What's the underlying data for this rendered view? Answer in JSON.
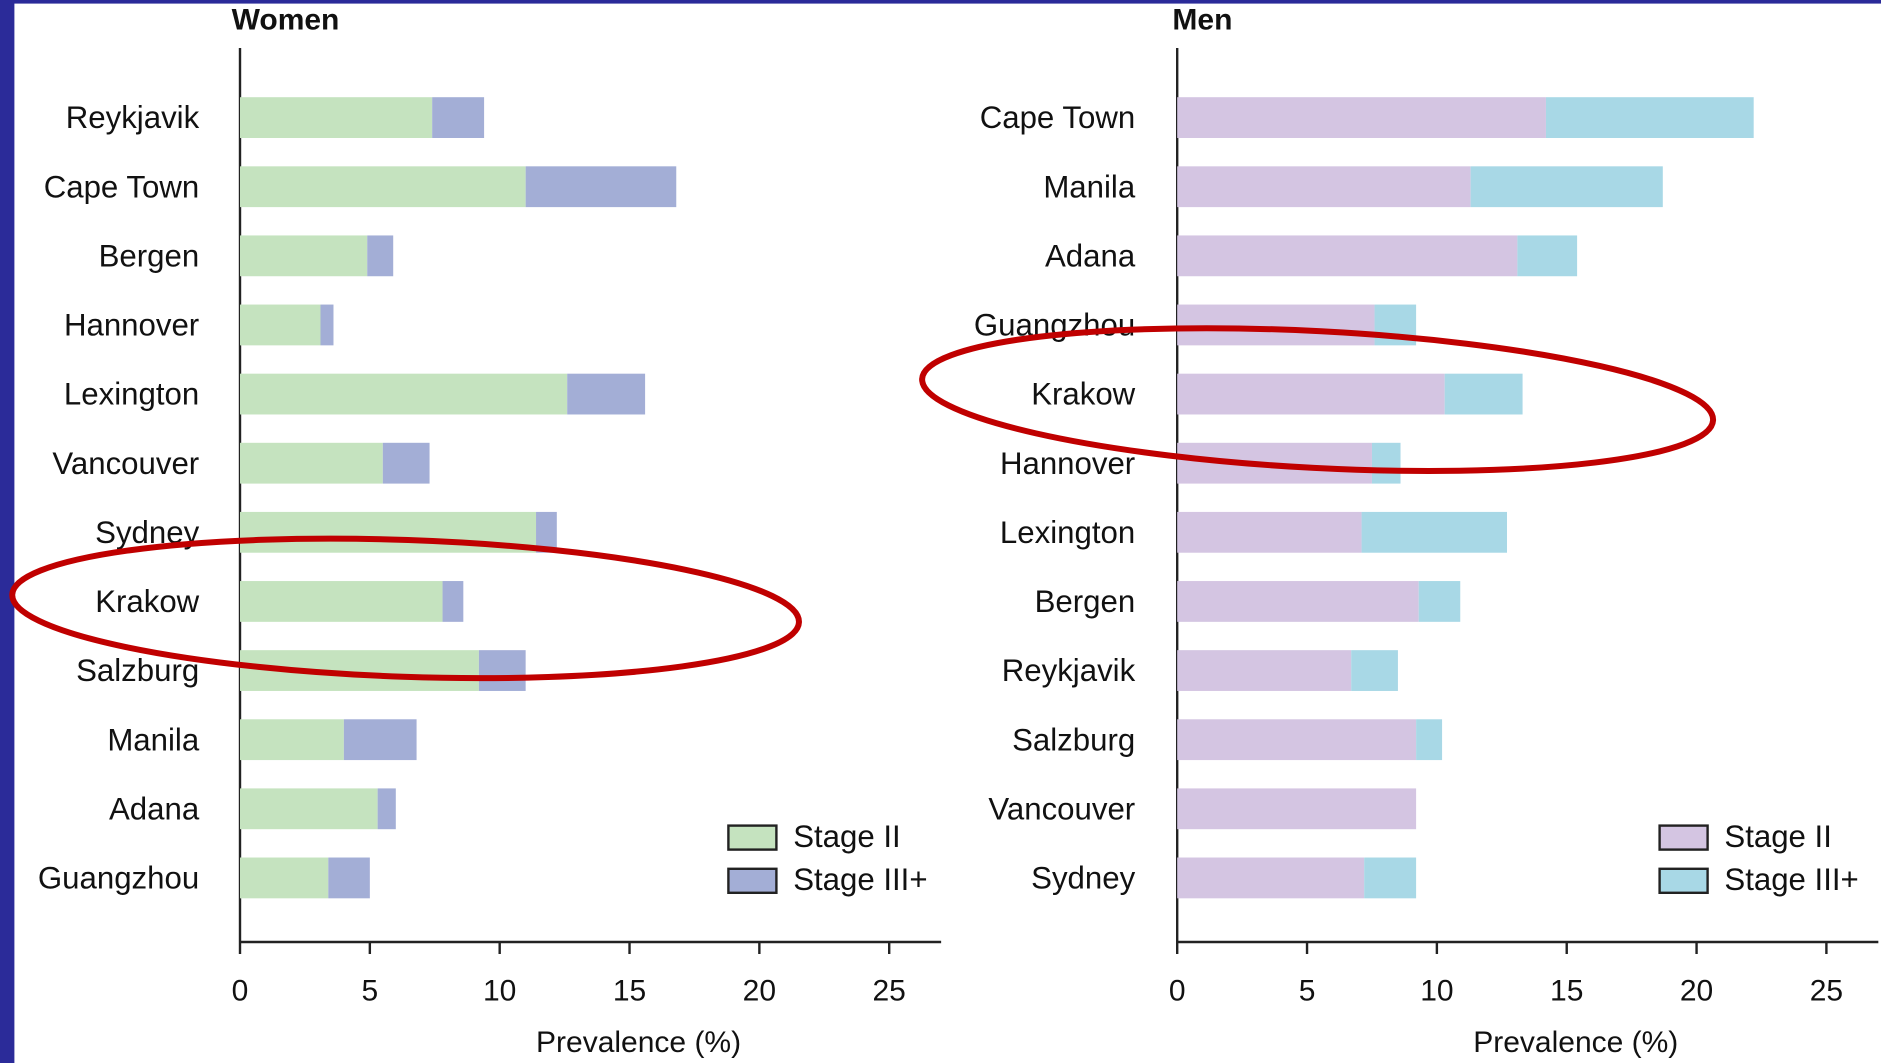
{
  "chart_data": [
    {
      "type": "bar",
      "orientation": "horizontal",
      "stacked": true,
      "title": "Women",
      "categories": [
        "Reykjavik",
        "Cape Town",
        "Bergen",
        "Hannover",
        "Lexington",
        "Vancouver",
        "Sydney",
        "Krakow",
        "Salzburg",
        "Manila",
        "Adana",
        "Guangzhou"
      ],
      "series": [
        {
          "name": "Stage II",
          "color": "#c5e3bf",
          "values": [
            7.4,
            11.0,
            4.9,
            3.1,
            12.6,
            5.5,
            11.4,
            7.8,
            9.2,
            4.0,
            5.3,
            3.4
          ]
        },
        {
          "name": "Stage III+",
          "color": "#a3aed6",
          "values": [
            2.0,
            5.8,
            1.0,
            0.5,
            3.0,
            1.8,
            0.8,
            0.8,
            1.8,
            2.8,
            0.7,
            1.6
          ]
        }
      ],
      "xlabel": "Prevalence (%)",
      "xlim": [
        0,
        27
      ],
      "xticks": [
        0,
        5,
        10,
        15,
        20,
        25
      ],
      "legend": "lower right"
    },
    {
      "type": "bar",
      "orientation": "horizontal",
      "stacked": true,
      "title": "Men",
      "categories": [
        "Cape Town",
        "Manila",
        "Adana",
        "Guangzhou",
        "Krakow",
        "Hannover",
        "Lexington",
        "Bergen",
        "Reykjavik",
        "Salzburg",
        "Vancouver",
        "Sydney"
      ],
      "series": [
        {
          "name": "Stage II",
          "color": "#d4c5e2",
          "values": [
            14.2,
            11.3,
            13.1,
            7.6,
            10.3,
            7.5,
            7.1,
            9.3,
            6.7,
            9.2,
            9.2,
            7.2
          ]
        },
        {
          "name": "Stage III+",
          "color": "#a8d8e6",
          "values": [
            8.0,
            7.4,
            2.3,
            1.6,
            3.0,
            1.1,
            5.6,
            1.6,
            1.8,
            1.0,
            0,
            2.0
          ]
        }
      ],
      "xlabel": "Prevalence (%)",
      "xlim": [
        0,
        27
      ],
      "xticks": [
        0,
        5,
        10,
        15,
        20,
        25
      ],
      "legend": "lower right"
    }
  ]
}
